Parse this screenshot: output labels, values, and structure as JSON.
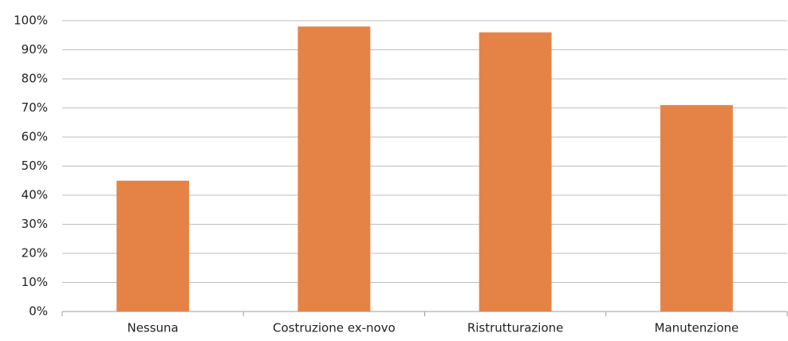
{
  "chart_data": {
    "type": "bar",
    "categories": [
      "Nessuna",
      "Costruzione ex-novo",
      "Ristrutturazione",
      "Manutenzione"
    ],
    "values": [
      45,
      98,
      96,
      71
    ],
    "color": "#e58346",
    "ylim": [
      0,
      100
    ],
    "yticks": [
      {
        "value": 0,
        "label": "0%"
      },
      {
        "value": 10,
        "label": "10%"
      },
      {
        "value": 20,
        "label": "20%"
      },
      {
        "value": 30,
        "label": "30%"
      },
      {
        "value": 40,
        "label": "40%"
      },
      {
        "value": 50,
        "label": "50%"
      },
      {
        "value": 60,
        "label": "60%"
      },
      {
        "value": 70,
        "label": "70%"
      },
      {
        "value": 80,
        "label": "80%"
      },
      {
        "value": 90,
        "label": "90%"
      },
      {
        "value": 100,
        "label": "100%"
      }
    ],
    "grid": true
  }
}
